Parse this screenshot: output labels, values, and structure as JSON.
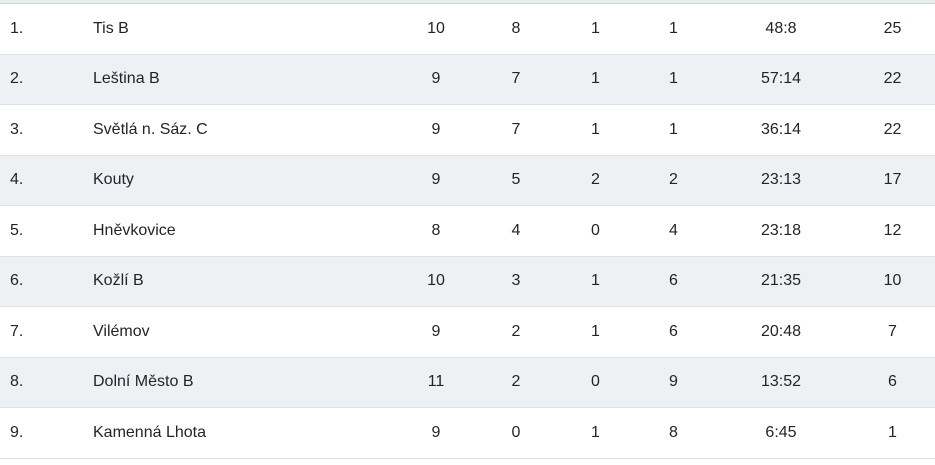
{
  "colors": {
    "stripe_row_background": "#edf1f4",
    "row_border": "#dce2e6",
    "top_strip_background": "#e9edf0",
    "top_strip_border": "#ccd5da",
    "text": "#212529"
  },
  "standings": {
    "rows": [
      {
        "rank": "1.",
        "team": "Tis B",
        "played": "10",
        "wins": "8",
        "draws": "1",
        "losses": "1",
        "score": "48:8",
        "points": "25"
      },
      {
        "rank": "2.",
        "team": "Leština B",
        "played": "9",
        "wins": "7",
        "draws": "1",
        "losses": "1",
        "score": "57:14",
        "points": "22"
      },
      {
        "rank": "3.",
        "team": "Světlá n. Sáz. C",
        "played": "9",
        "wins": "7",
        "draws": "1",
        "losses": "1",
        "score": "36:14",
        "points": "22"
      },
      {
        "rank": "4.",
        "team": "Kouty",
        "played": "9",
        "wins": "5",
        "draws": "2",
        "losses": "2",
        "score": "23:13",
        "points": "17"
      },
      {
        "rank": "5.",
        "team": "Hněvkovice",
        "played": "8",
        "wins": "4",
        "draws": "0",
        "losses": "4",
        "score": "23:18",
        "points": "12"
      },
      {
        "rank": "6.",
        "team": "Kožlí B",
        "played": "10",
        "wins": "3",
        "draws": "1",
        "losses": "6",
        "score": "21:35",
        "points": "10"
      },
      {
        "rank": "7.",
        "team": "Vilémov",
        "played": "9",
        "wins": "2",
        "draws": "1",
        "losses": "6",
        "score": "20:48",
        "points": "7"
      },
      {
        "rank": "8.",
        "team": "Dolní Město B",
        "played": "11",
        "wins": "2",
        "draws": "0",
        "losses": "9",
        "score": "13:52",
        "points": "6"
      },
      {
        "rank": "9.",
        "team": "Kamenná Lhota",
        "played": "9",
        "wins": "0",
        "draws": "1",
        "losses": "8",
        "score": "6:45",
        "points": "1"
      }
    ]
  }
}
